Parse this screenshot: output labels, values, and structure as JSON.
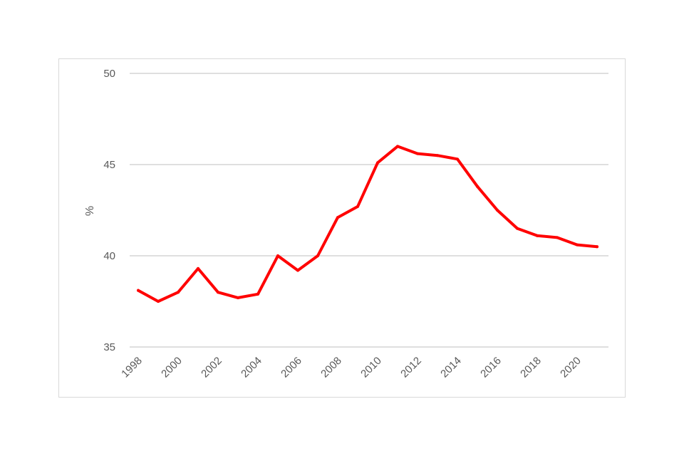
{
  "chart_data": {
    "type": "line",
    "title": "",
    "xlabel": "",
    "ylabel": "%",
    "ylim": [
      35,
      50
    ],
    "yticks": [
      35,
      40,
      45,
      50
    ],
    "xticks": [
      1998,
      2000,
      2002,
      2004,
      2006,
      2008,
      2010,
      2012,
      2014,
      2016,
      2018,
      2020
    ],
    "x": [
      1998,
      1999,
      2000,
      2001,
      2002,
      2003,
      2004,
      2005,
      2006,
      2007,
      2008,
      2009,
      2010,
      2011,
      2012,
      2013,
      2014,
      2015,
      2016,
      2017,
      2018,
      2019,
      2020,
      2021
    ],
    "series": [
      {
        "values": [
          38.1,
          37.5,
          38.0,
          39.3,
          38.0,
          37.7,
          37.9,
          40.0,
          39.2,
          40.0,
          42.1,
          42.7,
          45.1,
          46.0,
          45.6,
          45.5,
          45.3,
          43.8,
          42.5,
          41.5,
          41.1,
          41.0,
          40.6,
          40.5
        ]
      }
    ],
    "line_color": "#ff0000",
    "grid": true,
    "grid_color": "#bfbfbf"
  }
}
